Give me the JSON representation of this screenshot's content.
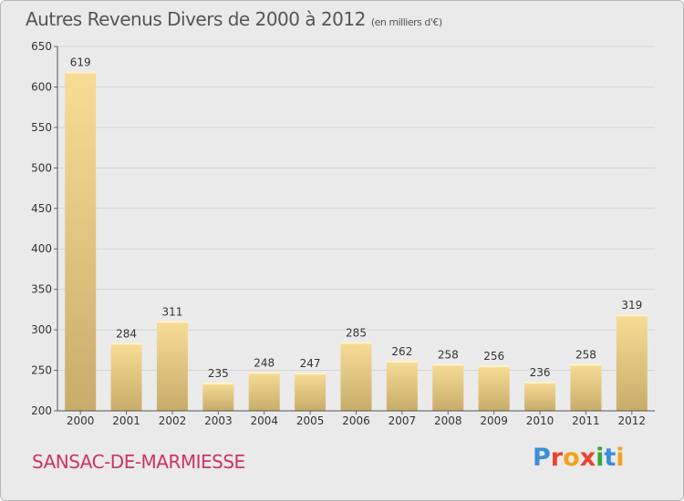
{
  "header": {
    "title": "Autres Revenus Divers de 2000 à 2012",
    "subtitle": "(en milliers d'€)"
  },
  "footer": {
    "commune": "SANSAC-DE-MARMIESSE",
    "brand": "Proxiti",
    "brand_colors": [
      "#3a8fd6",
      "#e8442e",
      "#f2a21a",
      "#e8442e",
      "#3aa63a",
      "#3a8fd6",
      "#f2a21a"
    ]
  },
  "colors": {
    "bar_light": "#f8dd97",
    "bar_dark": "#c8ac6a",
    "commune": "#cc3366",
    "axis_text": "#333333",
    "grid": "#d6d6d6"
  },
  "chart_data": {
    "type": "bar",
    "title": "Autres Revenus Divers de 2000 à 2012",
    "subtitle": "(en milliers d'€)",
    "categories": [
      "2000",
      "2001",
      "2002",
      "2003",
      "2004",
      "2005",
      "2006",
      "2007",
      "2008",
      "2009",
      "2010",
      "2011",
      "2012"
    ],
    "values": [
      619,
      284,
      311,
      235,
      248,
      247,
      285,
      262,
      258,
      256,
      236,
      258,
      319
    ],
    "ylim": [
      200,
      650
    ],
    "yticks": [
      200,
      250,
      300,
      350,
      400,
      450,
      500,
      550,
      600,
      650
    ],
    "grid": true,
    "data_labels": true
  }
}
